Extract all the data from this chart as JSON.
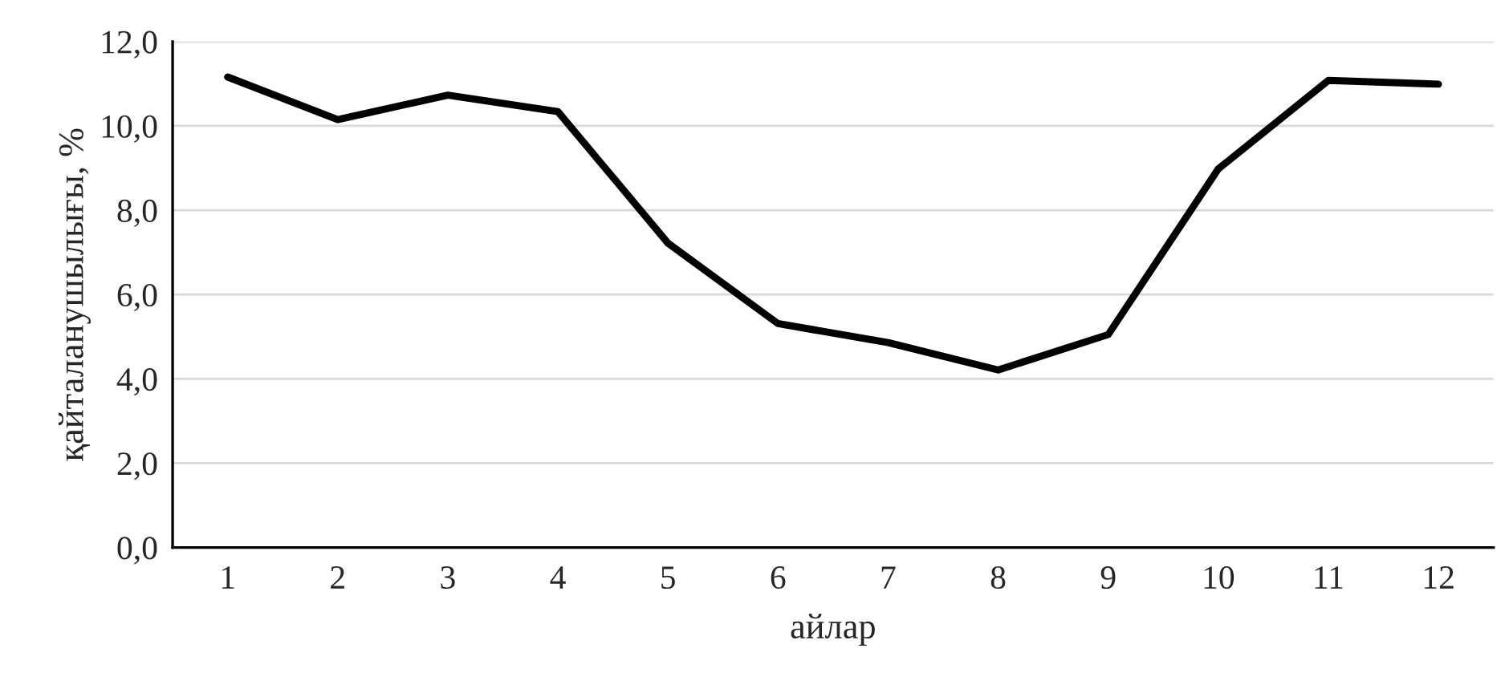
{
  "chart_data": {
    "type": "line",
    "xlabel": "айлар",
    "ylabel": "қайталанушылығы, %",
    "categories": [
      "1",
      "2",
      "3",
      "4",
      "5",
      "6",
      "7",
      "8",
      "9",
      "10",
      "11",
      "12"
    ],
    "series": [
      {
        "color": "#000000",
        "values": [
          11.16,
          10.15,
          10.73,
          10.34,
          7.22,
          5.31,
          4.86,
          4.21,
          5.05,
          8.98,
          11.08,
          10.99
        ]
      }
    ],
    "ylim": [
      0,
      12
    ],
    "yticks": [
      {
        "value": 0,
        "label": "0,0"
      },
      {
        "value": 2,
        "label": "2,0"
      },
      {
        "value": 4,
        "label": "4,0"
      },
      {
        "value": 6,
        "label": "6,0"
      },
      {
        "value": 8,
        "label": "8,0"
      },
      {
        "value": 10,
        "label": "10,0"
      },
      {
        "value": 12,
        "label": "12,0"
      }
    ],
    "grid": "y",
    "legend": false,
    "marker": "none",
    "line_style": "solid"
  }
}
